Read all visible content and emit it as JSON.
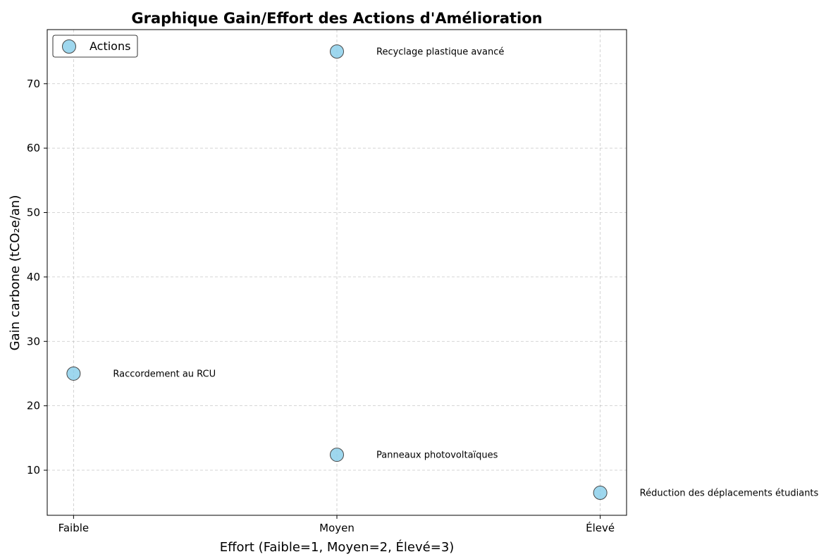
{
  "chart_data": {
    "type": "scatter",
    "title": "Graphique Gain/Effort des Actions d'Amélioration",
    "xlabel": "Effort (Faible=1, Moyen=2, Élevé=3)",
    "ylabel": "Gain carbone (tCO₂e/an)",
    "xlim": [
      0.9,
      3.1
    ],
    "ylim": [
      3.0,
      78.4
    ],
    "x_ticks": [
      {
        "value": 1,
        "label": "Faible"
      },
      {
        "value": 2,
        "label": "Moyen"
      },
      {
        "value": 3,
        "label": "Élevé"
      }
    ],
    "y_ticks": [
      10,
      20,
      30,
      40,
      50,
      60,
      70
    ],
    "grid": true,
    "legend": {
      "position": "top-left",
      "entries": [
        "Actions"
      ]
    },
    "marker_color": "#87ceeb",
    "series": [
      {
        "name": "Actions",
        "points": [
          {
            "x": 1,
            "y": 25,
            "label": "Raccordement au RCU"
          },
          {
            "x": 2,
            "y": 75,
            "label": "Recyclage plastique avancé"
          },
          {
            "x": 2,
            "y": 12.4,
            "label": "Panneaux photovoltaïques"
          },
          {
            "x": 3,
            "y": 6.5,
            "label": "Réduction des déplacements étudiants"
          }
        ]
      }
    ]
  }
}
